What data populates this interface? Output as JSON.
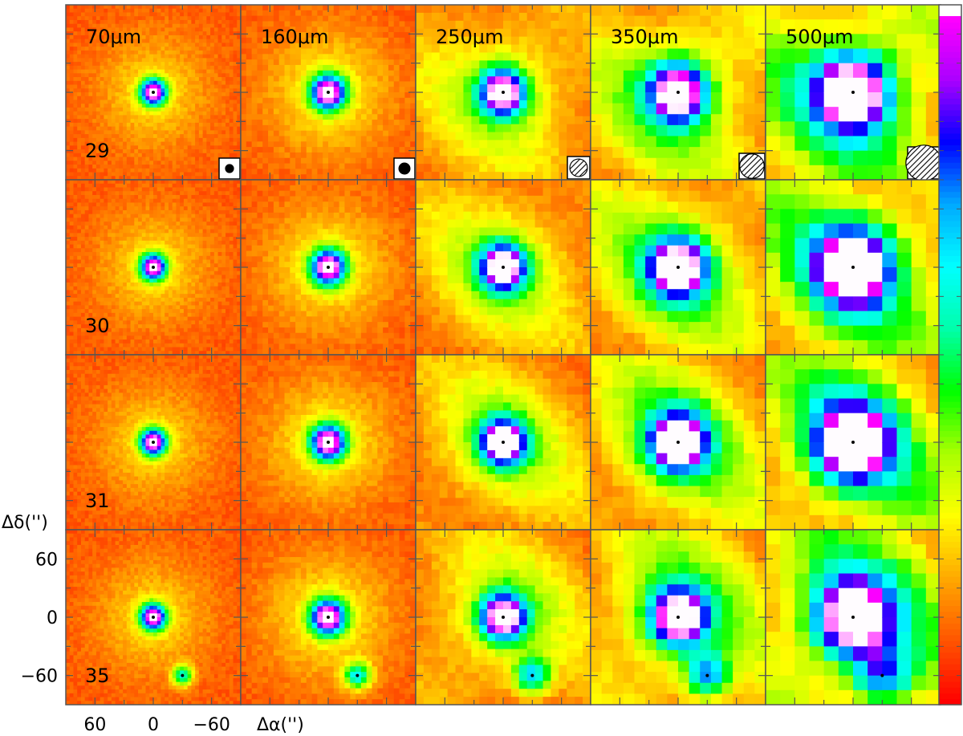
{
  "chart_data": {
    "type": "heatmap",
    "description_grid": "5 wavelength columns x 4 source rows of intensity maps",
    "wavelengths": [
      "70μm",
      "160μm",
      "250μm",
      "350μm",
      "500μm"
    ],
    "sources": [
      "29",
      "30",
      "31",
      "35"
    ],
    "xlabel": "Δα('')",
    "ylabel": "Δδ('')",
    "x_ticks": [
      60,
      0,
      -60
    ],
    "y_ticks": [
      60,
      0,
      -60
    ],
    "axis_range": [
      90,
      -90
    ],
    "colorbar": [
      "#ff0000",
      "#ff5500",
      "#ffaa00",
      "#ffff00",
      "#aaff00",
      "#00ff00",
      "#00ffaa",
      "#00ffff",
      "#00aaff",
      "#0000ff",
      "#aa00ff",
      "#ff00ff",
      "#ffffff"
    ],
    "beam_size_arcsec": [
      5.6,
      11.4,
      18.1,
      25.2,
      36.6
    ],
    "secondary_source_offset": {
      "row": "35",
      "dx": -30,
      "dy": -60
    }
  }
}
